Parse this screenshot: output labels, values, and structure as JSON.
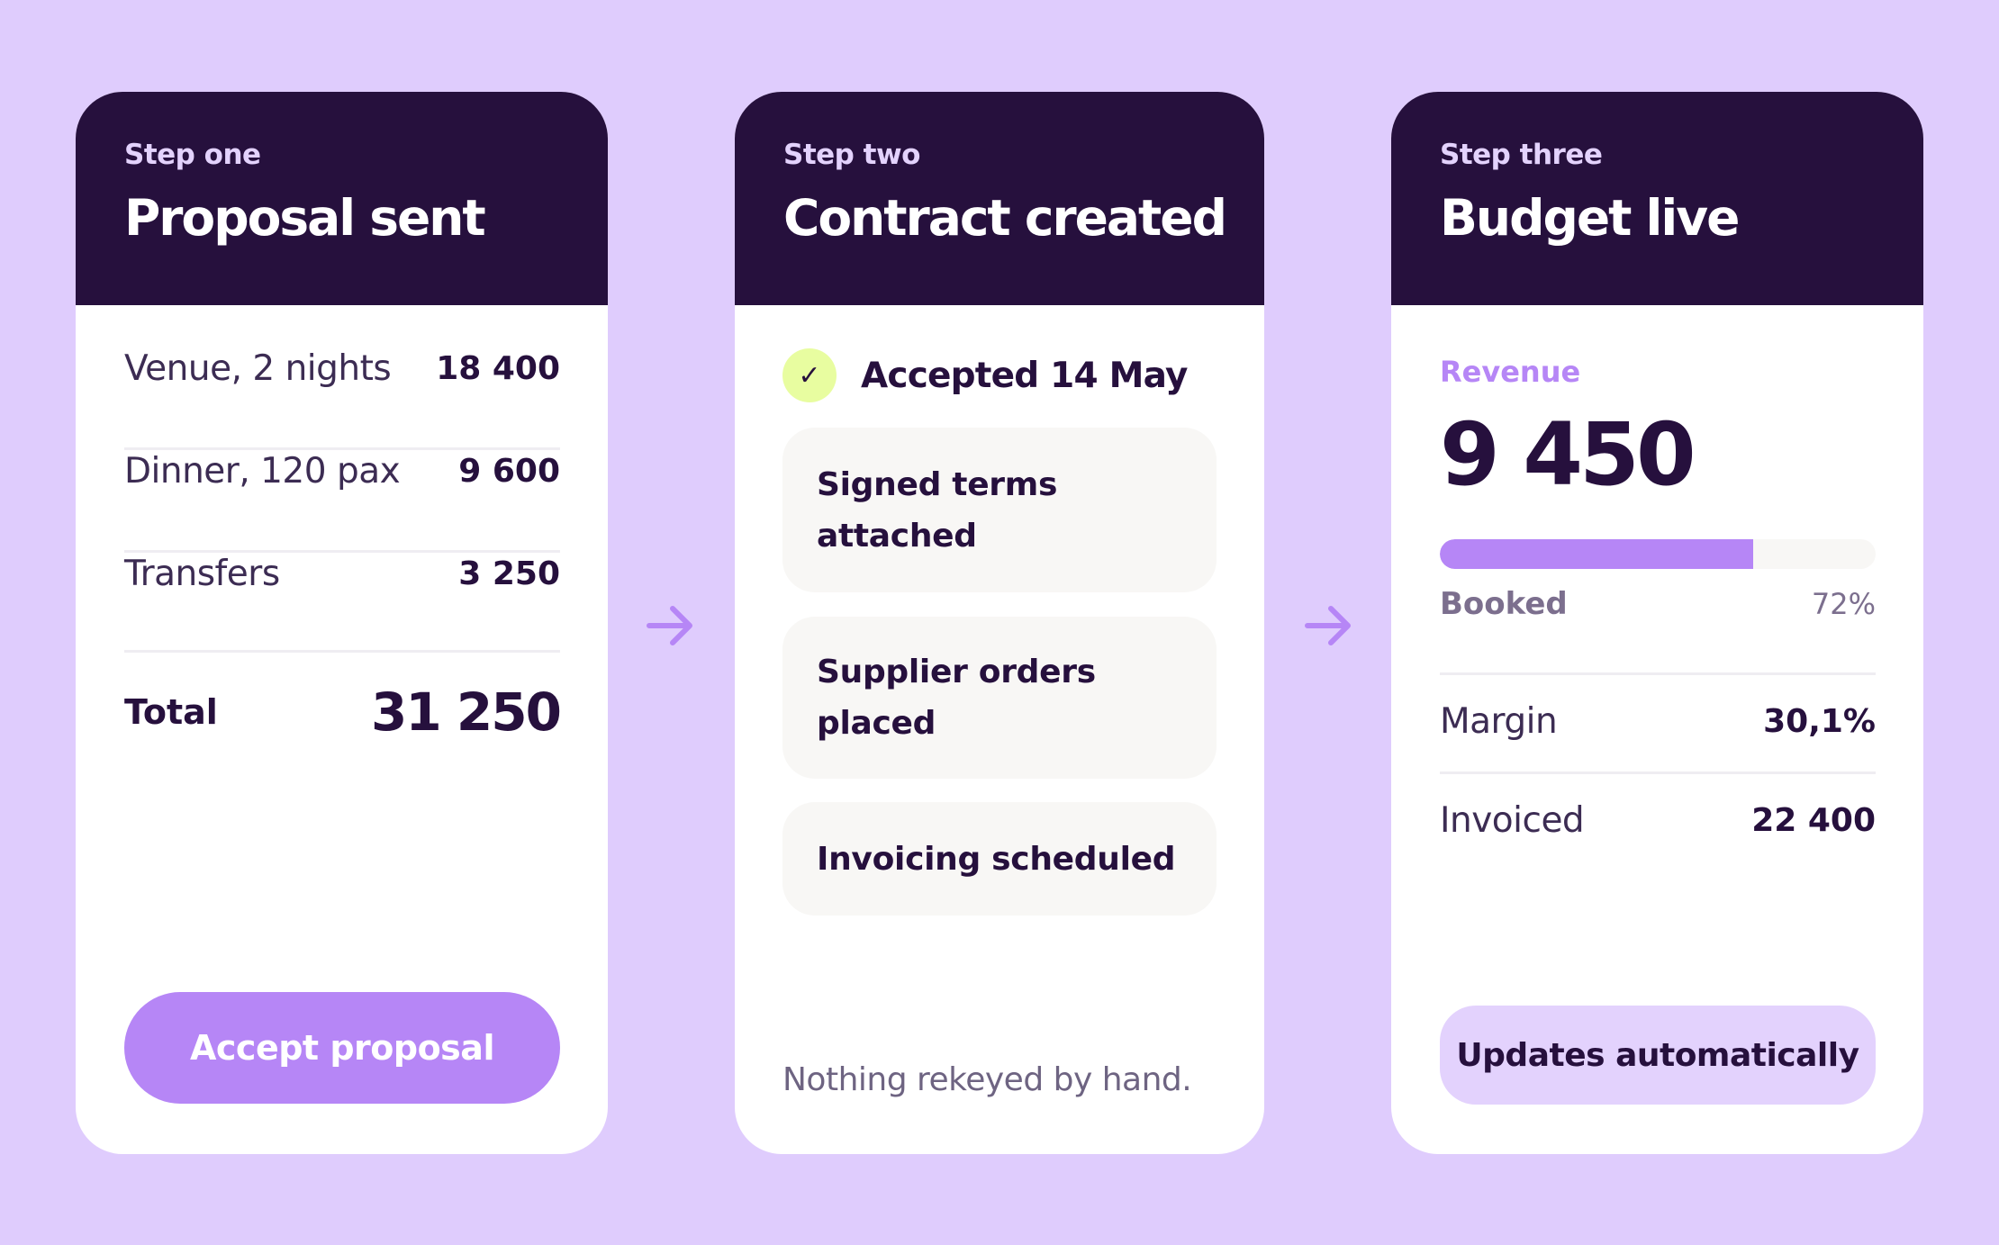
{
  "colors": {
    "background": "#dfccfd",
    "header": "#26103d",
    "accent": "#b686f6",
    "check_bg": "#e8fda0",
    "pill_bg": "#e3d2fd"
  },
  "step_one": {
    "step_label": "Step one",
    "title": "Proposal sent",
    "lines": [
      {
        "label": "Venue, 2 nights",
        "amount": "18 400"
      },
      {
        "label": "Dinner, 120 pax",
        "amount": "9 600"
      },
      {
        "label": "Transfers",
        "amount": "3 250"
      }
    ],
    "total_label": "Total",
    "total_amount": "31 250",
    "button_label": "Accept proposal"
  },
  "step_two": {
    "step_label": "Step two",
    "title": "Contract created",
    "check_glyph": "✓",
    "accepted_text": "Accepted 14 May",
    "tasks": [
      {
        "line1": "Signed terms",
        "line2": "attached"
      },
      {
        "line1": "Supplier orders",
        "line2": "placed"
      },
      {
        "line1": "Invoicing scheduled",
        "line2": ""
      }
    ],
    "note": "Nothing rekeyed by hand."
  },
  "step_three": {
    "step_label": "Step three",
    "title": "Budget live",
    "revenue_label": "Revenue",
    "revenue_value": "9 450",
    "booked_fraction": 0.72,
    "booked_label": "Booked",
    "booked_percent": "72%",
    "metrics": [
      {
        "label": "Margin",
        "value": "30,1%"
      },
      {
        "label": "Invoiced",
        "value": "22 400"
      }
    ],
    "pill_label": "Updates automatically"
  },
  "arrow_icons": [
    "arrow-right-icon",
    "arrow-right-icon"
  ]
}
